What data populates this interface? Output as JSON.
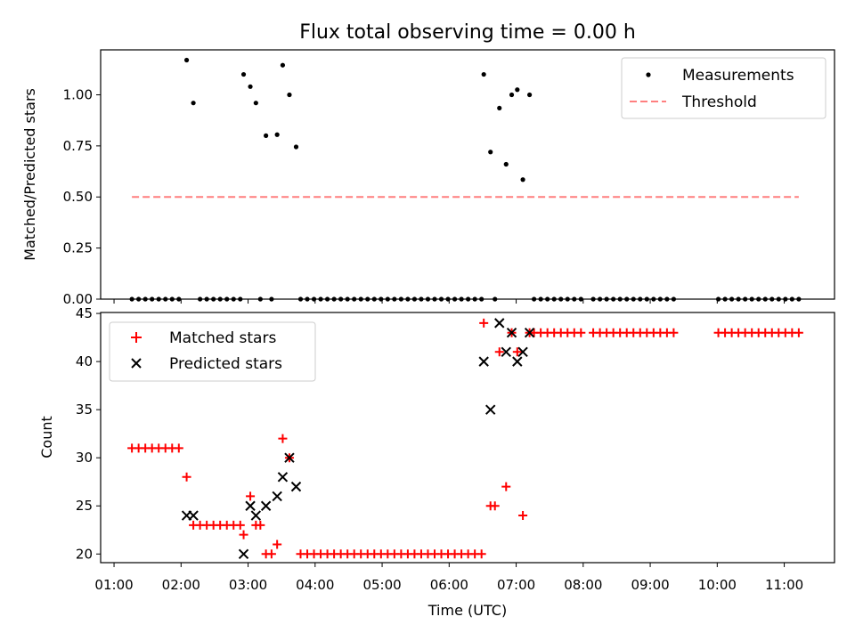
{
  "figure": {
    "title": "Flux total observing time = 0.00 h",
    "xlabel": "Time (UTC)"
  },
  "colors": {
    "matched": "#ff0000",
    "predicted": "#000000",
    "measurement": "#000000",
    "threshold": "#ff7f7f",
    "axis": "#000000"
  },
  "chart_data": [
    {
      "type": "scatter",
      "ylabel": "Matched/Predicted stars",
      "xlim": [
        "00:48",
        "11:45"
      ],
      "ylim": [
        0,
        1.22
      ],
      "yticks": [
        0.0,
        0.25,
        0.5,
        0.75,
        1.0
      ],
      "ytick_labels": [
        "0.00",
        "0.25",
        "0.50",
        "0.75",
        "1.00"
      ],
      "grid": false,
      "legend": "top-right",
      "series": [
        {
          "name": "Measurements",
          "style": "dot",
          "points": [
            [
              "01:16",
              0
            ],
            [
              "01:22",
              0
            ],
            [
              "01:28",
              0
            ],
            [
              "01:34",
              0
            ],
            [
              "01:40",
              0
            ],
            [
              "01:46",
              0
            ],
            [
              "01:52",
              0
            ],
            [
              "01:58",
              0
            ],
            [
              "02:05",
              1.17
            ],
            [
              "02:11",
              0.96
            ],
            [
              "02:17",
              0
            ],
            [
              "02:23",
              0
            ],
            [
              "02:29",
              0
            ],
            [
              "02:35",
              0
            ],
            [
              "02:41",
              0
            ],
            [
              "02:47",
              0
            ],
            [
              "02:53",
              0
            ],
            [
              "02:56",
              1.1
            ],
            [
              "03:02",
              1.04
            ],
            [
              "03:07",
              0.96
            ],
            [
              "03:11",
              0
            ],
            [
              "03:16",
              0.8
            ],
            [
              "03:21",
              0
            ],
            [
              "03:26",
              0.805
            ],
            [
              "03:31",
              1.145
            ],
            [
              "03:37",
              1.0
            ],
            [
              "03:43",
              0.745
            ],
            [
              "03:47",
              0
            ],
            [
              "03:53",
              0
            ],
            [
              "03:59",
              0
            ],
            [
              "04:05",
              0
            ],
            [
              "04:11",
              0
            ],
            [
              "04:17",
              0
            ],
            [
              "04:23",
              0
            ],
            [
              "04:29",
              0
            ],
            [
              "04:35",
              0
            ],
            [
              "04:41",
              0
            ],
            [
              "04:47",
              0
            ],
            [
              "04:53",
              0
            ],
            [
              "04:59",
              0
            ],
            [
              "05:05",
              0
            ],
            [
              "05:11",
              0
            ],
            [
              "05:17",
              0
            ],
            [
              "05:23",
              0
            ],
            [
              "05:29",
              0
            ],
            [
              "05:35",
              0
            ],
            [
              "05:41",
              0
            ],
            [
              "05:47",
              0
            ],
            [
              "05:53",
              0
            ],
            [
              "05:59",
              0
            ],
            [
              "06:05",
              0
            ],
            [
              "06:11",
              0
            ],
            [
              "06:17",
              0
            ],
            [
              "06:23",
              0
            ],
            [
              "06:29",
              0
            ],
            [
              "06:31",
              1.1
            ],
            [
              "06:37",
              0.72
            ],
            [
              "06:41",
              0
            ],
            [
              "06:45",
              0.935
            ],
            [
              "06:51",
              0.66
            ],
            [
              "06:56",
              1.0
            ],
            [
              "07:01",
              1.025
            ],
            [
              "07:06",
              0.585
            ],
            [
              "07:12",
              1.0
            ],
            [
              "07:16",
              0
            ],
            [
              "07:22",
              0
            ],
            [
              "07:28",
              0
            ],
            [
              "07:34",
              0
            ],
            [
              "07:40",
              0
            ],
            [
              "07:46",
              0
            ],
            [
              "07:52",
              0
            ],
            [
              "07:58",
              0
            ],
            [
              "08:09",
              0
            ],
            [
              "08:15",
              0
            ],
            [
              "08:21",
              0
            ],
            [
              "08:27",
              0
            ],
            [
              "08:33",
              0
            ],
            [
              "08:39",
              0
            ],
            [
              "08:45",
              0
            ],
            [
              "08:51",
              0
            ],
            [
              "08:57",
              0
            ],
            [
              "09:03",
              0
            ],
            [
              "09:09",
              0
            ],
            [
              "09:15",
              0
            ],
            [
              "09:21",
              0
            ],
            [
              "10:01",
              0
            ],
            [
              "10:07",
              0
            ],
            [
              "10:13",
              0
            ],
            [
              "10:19",
              0
            ],
            [
              "10:25",
              0
            ],
            [
              "10:31",
              0
            ],
            [
              "10:37",
              0
            ],
            [
              "10:43",
              0
            ],
            [
              "10:49",
              0
            ],
            [
              "10:55",
              0
            ],
            [
              "11:01",
              0
            ],
            [
              "11:07",
              0
            ],
            [
              "11:13",
              0
            ]
          ]
        },
        {
          "name": "Threshold",
          "style": "dashed-line",
          "points": [
            [
              "01:16",
              0.5
            ],
            [
              "11:13",
              0.5
            ]
          ]
        }
      ]
    },
    {
      "type": "scatter",
      "ylabel": "Count",
      "xlim": [
        "00:48",
        "11:45"
      ],
      "ylim": [
        19.1,
        45.1
      ],
      "yticks": [
        20,
        25,
        30,
        35,
        40,
        45
      ],
      "xtick_labels": [
        "01:00",
        "02:00",
        "03:00",
        "04:00",
        "05:00",
        "06:00",
        "07:00",
        "08:00",
        "09:00",
        "10:00",
        "11:00"
      ],
      "grid": false,
      "legend": "top-left",
      "series": [
        {
          "name": "Matched stars",
          "style": "plus",
          "points": [
            [
              "01:16",
              31
            ],
            [
              "01:22",
              31
            ],
            [
              "01:28",
              31
            ],
            [
              "01:34",
              31
            ],
            [
              "01:40",
              31
            ],
            [
              "01:46",
              31
            ],
            [
              "01:52",
              31
            ],
            [
              "01:58",
              31
            ],
            [
              "02:05",
              28
            ],
            [
              "02:11",
              23
            ],
            [
              "02:17",
              23
            ],
            [
              "02:23",
              23
            ],
            [
              "02:29",
              23
            ],
            [
              "02:35",
              23
            ],
            [
              "02:41",
              23
            ],
            [
              "02:47",
              23
            ],
            [
              "02:53",
              23
            ],
            [
              "02:56",
              22
            ],
            [
              "03:02",
              26
            ],
            [
              "03:07",
              23
            ],
            [
              "03:11",
              23
            ],
            [
              "03:16",
              20
            ],
            [
              "03:21",
              20
            ],
            [
              "03:26",
              21
            ],
            [
              "03:31",
              32
            ],
            [
              "03:37",
              30
            ],
            [
              "03:47",
              20
            ],
            [
              "03:53",
              20
            ],
            [
              "03:59",
              20
            ],
            [
              "04:05",
              20
            ],
            [
              "04:11",
              20
            ],
            [
              "04:17",
              20
            ],
            [
              "04:23",
              20
            ],
            [
              "04:29",
              20
            ],
            [
              "04:35",
              20
            ],
            [
              "04:41",
              20
            ],
            [
              "04:47",
              20
            ],
            [
              "04:53",
              20
            ],
            [
              "04:59",
              20
            ],
            [
              "05:05",
              20
            ],
            [
              "05:11",
              20
            ],
            [
              "05:17",
              20
            ],
            [
              "05:23",
              20
            ],
            [
              "05:29",
              20
            ],
            [
              "05:35",
              20
            ],
            [
              "05:41",
              20
            ],
            [
              "05:47",
              20
            ],
            [
              "05:53",
              20
            ],
            [
              "05:59",
              20
            ],
            [
              "06:05",
              20
            ],
            [
              "06:11",
              20
            ],
            [
              "06:17",
              20
            ],
            [
              "06:23",
              20
            ],
            [
              "06:29",
              20
            ],
            [
              "06:31",
              44
            ],
            [
              "06:37",
              25
            ],
            [
              "06:41",
              25
            ],
            [
              "06:45",
              41
            ],
            [
              "06:51",
              27
            ],
            [
              "06:56",
              43
            ],
            [
              "07:01",
              41
            ],
            [
              "07:06",
              24
            ],
            [
              "07:12",
              43
            ],
            [
              "07:16",
              43
            ],
            [
              "07:22",
              43
            ],
            [
              "07:28",
              43
            ],
            [
              "07:34",
              43
            ],
            [
              "07:40",
              43
            ],
            [
              "07:46",
              43
            ],
            [
              "07:52",
              43
            ],
            [
              "07:58",
              43
            ],
            [
              "08:09",
              43
            ],
            [
              "08:15",
              43
            ],
            [
              "08:21",
              43
            ],
            [
              "08:27",
              43
            ],
            [
              "08:33",
              43
            ],
            [
              "08:39",
              43
            ],
            [
              "08:45",
              43
            ],
            [
              "08:51",
              43
            ],
            [
              "08:57",
              43
            ],
            [
              "09:03",
              43
            ],
            [
              "09:09",
              43
            ],
            [
              "09:15",
              43
            ],
            [
              "09:21",
              43
            ],
            [
              "10:01",
              43
            ],
            [
              "10:07",
              43
            ],
            [
              "10:13",
              43
            ],
            [
              "10:19",
              43
            ],
            [
              "10:25",
              43
            ],
            [
              "10:31",
              43
            ],
            [
              "10:37",
              43
            ],
            [
              "10:43",
              43
            ],
            [
              "10:49",
              43
            ],
            [
              "10:55",
              43
            ],
            [
              "11:01",
              43
            ],
            [
              "11:07",
              43
            ],
            [
              "11:13",
              43
            ]
          ]
        },
        {
          "name": "Predicted stars",
          "style": "x",
          "points": [
            [
              "02:05",
              24
            ],
            [
              "02:11",
              24
            ],
            [
              "02:56",
              20
            ],
            [
              "03:02",
              25
            ],
            [
              "03:07",
              24
            ],
            [
              "03:16",
              25
            ],
            [
              "03:26",
              26
            ],
            [
              "03:31",
              28
            ],
            [
              "03:37",
              30
            ],
            [
              "03:43",
              27
            ],
            [
              "06:31",
              40
            ],
            [
              "06:37",
              35
            ],
            [
              "06:45",
              44
            ],
            [
              "06:51",
              41
            ],
            [
              "06:56",
              43
            ],
            [
              "07:01",
              40
            ],
            [
              "07:06",
              41
            ],
            [
              "07:12",
              43
            ]
          ]
        }
      ]
    }
  ]
}
